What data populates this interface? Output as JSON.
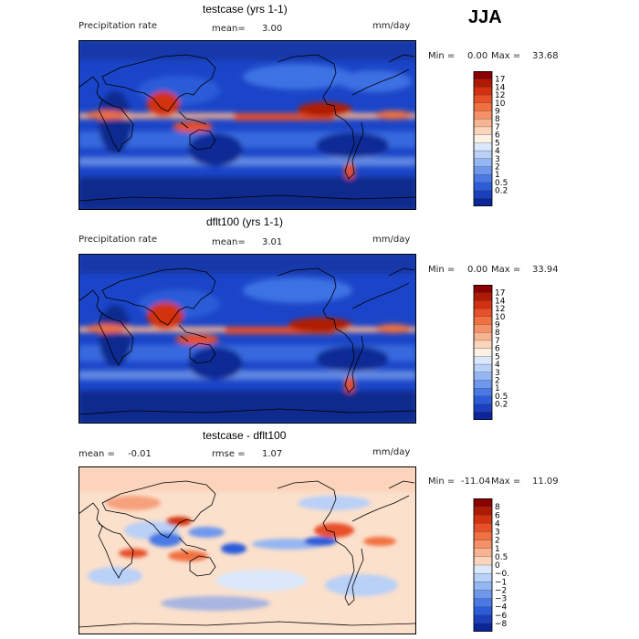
{
  "season": "JJA",
  "panels": [
    {
      "title": "testcase (yrs 1-1)",
      "left_label": "Precipitation rate",
      "center_label": "mean=",
      "center_value": "3.00",
      "center2_label": "",
      "center2_value": "",
      "units": "mm/day",
      "min_label": "Min =",
      "min_value": "0.00",
      "max_label": "Max =",
      "max_value": "33.68"
    },
    {
      "title": "dflt100 (yrs 1-1)",
      "left_label": "Precipitation rate",
      "center_label": "mean=",
      "center_value": "3.01",
      "center2_label": "",
      "center2_value": "",
      "units": "mm/day",
      "min_label": "Min =",
      "min_value": "0.00",
      "max_label": "Max =",
      "max_value": "33.94"
    },
    {
      "title": "testcase - dflt100",
      "left_label": "mean =",
      "left_value": "-0.01",
      "center_label": "rmse =",
      "center_value": "1.07",
      "units": "mm/day",
      "min_label": "Min =",
      "min_value": "-11.04",
      "max_label": "Max =",
      "max_value": "11.09"
    }
  ],
  "colorbars": {
    "precip": {
      "labels": [
        "17",
        "14",
        "12",
        "10",
        "9",
        "8",
        "7",
        "6",
        "5",
        "4",
        "3",
        "2",
        "1",
        "0.5",
        "0.2"
      ],
      "colors": [
        "#8b0000",
        "#b01a05",
        "#d2300f",
        "#e8502a",
        "#f07040",
        "#f59068",
        "#f8b390",
        "#fbd5bb",
        "#fdf1e4",
        "#dbe8fb",
        "#b9d0f7",
        "#94b6f2",
        "#6f98ec",
        "#4a79e5",
        "#2c5cd9",
        "#1a40bd",
        "#0c2598"
      ]
    },
    "diff": {
      "labels": [
        "8",
        "6",
        "4",
        "3",
        "2",
        "1",
        "0.5",
        "0",
        "−0.5",
        "−1",
        "−2",
        "−3",
        "−4",
        "−6",
        "−8"
      ],
      "colors": [
        "#8b0000",
        "#b01a05",
        "#d2300f",
        "#e8502a",
        "#f07040",
        "#f59068",
        "#f8b390",
        "#fbd5bb",
        "#dce9fb",
        "#b9d0f7",
        "#94b6f2",
        "#6f98ec",
        "#4a79e5",
        "#2c5cd9",
        "#1a40bd",
        "#0c2598"
      ]
    }
  }
}
